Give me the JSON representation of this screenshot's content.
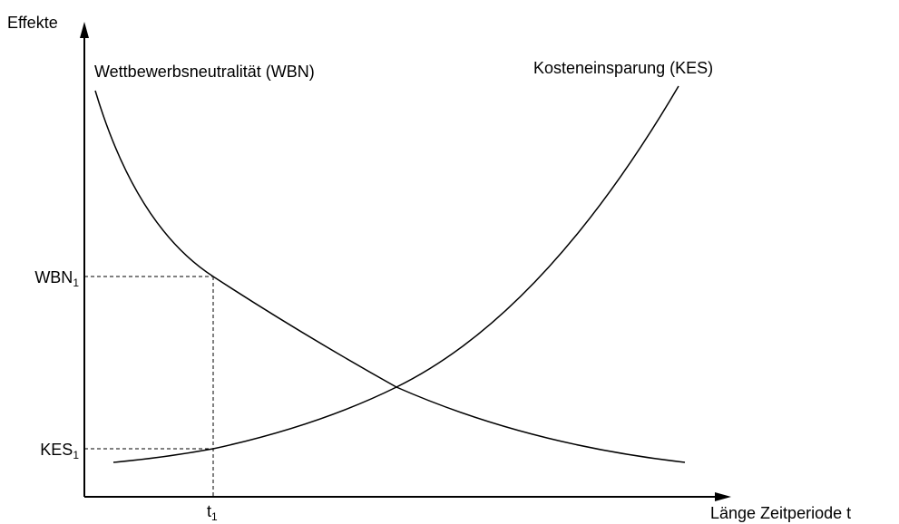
{
  "y_axis": {
    "label": "Effekte"
  },
  "x_axis": {
    "label": "Länge Zeitperiode t"
  },
  "curves": [
    {
      "label": "Wettbewerbsneutralität (WBN)"
    },
    {
      "label": "Kosteneinsparung (KES)"
    }
  ],
  "markers": {
    "y": [
      {
        "text": "WBN",
        "subscript": "1"
      },
      {
        "text": "KES",
        "subscript": "1"
      }
    ],
    "x": [
      {
        "text": "t",
        "subscript": "1"
      }
    ]
  }
}
